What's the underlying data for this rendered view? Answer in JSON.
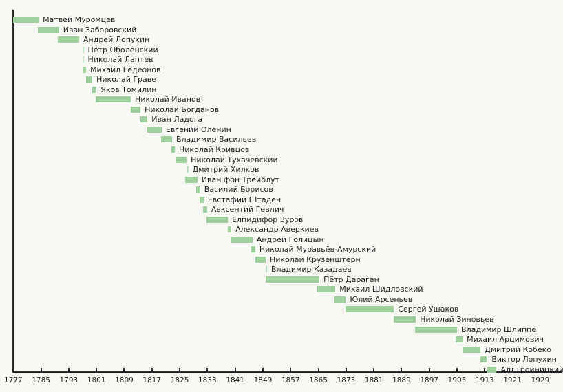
{
  "chart_data": {
    "type": "bar",
    "subtype": "horizontal-gantt-timeline",
    "title": "",
    "xlabel": "",
    "ylabel": "",
    "unit": "year",
    "grid": false,
    "legend": "none",
    "axis": {
      "min": 1777,
      "max": 1929,
      "tick_interval": 8,
      "ticks": [
        1777,
        1785,
        1793,
        1801,
        1809,
        1817,
        1825,
        1833,
        1841,
        1849,
        1857,
        1865,
        1873,
        1881,
        1889,
        1897,
        1905,
        1913,
        1921,
        1929
      ]
    },
    "people": [
      {
        "name": "Матвей Муромцев",
        "start": 1777.0,
        "end": 1784.3
      },
      {
        "name": "Иван Заборовский",
        "start": 1784.1,
        "end": 1790.2
      },
      {
        "name": "Андрей Лопухин",
        "start": 1789.9,
        "end": 1796.0
      },
      {
        "name": "Пётр Оболенский",
        "start": 1797.0,
        "end": 1797.3
      },
      {
        "name": "Николай Лаптев",
        "start": 1797.0,
        "end": 1797.3
      },
      {
        "name": "Михаил Гедеонов",
        "start": 1796.9,
        "end": 1798.0
      },
      {
        "name": "Николай Граве",
        "start": 1797.9,
        "end": 1799.8
      },
      {
        "name": "Яков Томилин",
        "start": 1799.7,
        "end": 1801.0
      },
      {
        "name": "Николай Иванов",
        "start": 1800.7,
        "end": 1810.9
      },
      {
        "name": "Николай Богданов",
        "start": 1810.8,
        "end": 1813.7
      },
      {
        "name": "Иван Ладога",
        "start": 1813.7,
        "end": 1815.7
      },
      {
        "name": "Евгений Оленин",
        "start": 1815.7,
        "end": 1819.8
      },
      {
        "name": "Владимир Васильев",
        "start": 1819.7,
        "end": 1822.8
      },
      {
        "name": "Николай Кривцов",
        "start": 1822.7,
        "end": 1823.6
      },
      {
        "name": "Николай Тухачевский",
        "start": 1824.0,
        "end": 1827.0
      },
      {
        "name": "Дмитрий Хилков",
        "start": 1827.2,
        "end": 1827.5
      },
      {
        "name": "Иван фон Трейблут",
        "start": 1826.6,
        "end": 1830.1
      },
      {
        "name": "Василий Борисов",
        "start": 1829.8,
        "end": 1830.9
      },
      {
        "name": "Евстафий Штаден",
        "start": 1830.8,
        "end": 1831.9
      },
      {
        "name": "Авксентий Гевлич",
        "start": 1831.8,
        "end": 1832.9
      },
      {
        "name": "Елпидифор Зуров",
        "start": 1832.8,
        "end": 1838.9
      },
      {
        "name": "Александр Аверкиев",
        "start": 1838.9,
        "end": 1839.9
      },
      {
        "name": "Андрей Голицын",
        "start": 1839.9,
        "end": 1846.0
      },
      {
        "name": "Николай Муравьёв-Амурский",
        "start": 1845.7,
        "end": 1846.8
      },
      {
        "name": "Николай Крузенштерн",
        "start": 1846.9,
        "end": 1849.8
      },
      {
        "name": "Владимир Казадаев",
        "start": 1849.9,
        "end": 1850.2
      },
      {
        "name": "Пётр Дараган",
        "start": 1849.9,
        "end": 1865.3
      },
      {
        "name": "Михаил Шидловский",
        "start": 1864.7,
        "end": 1869.9
      },
      {
        "name": "Юлий Арсеньев",
        "start": 1869.7,
        "end": 1872.9
      },
      {
        "name": "Сергей Ушаков",
        "start": 1872.9,
        "end": 1886.8
      },
      {
        "name": "Николай Зиновьев",
        "start": 1886.8,
        "end": 1893.1
      },
      {
        "name": "Владимир Шлиппе",
        "start": 1892.9,
        "end": 1905.0
      },
      {
        "name": "Михаил Арцимович",
        "start": 1904.6,
        "end": 1906.6
      },
      {
        "name": "Дмитрий Кобеко",
        "start": 1906.6,
        "end": 1911.8
      },
      {
        "name": "Виктор Лопухин",
        "start": 1911.8,
        "end": 1913.8
      },
      {
        "name": "Ал. Тройницкий",
        "start": 1913.8,
        "end": 1916.4
      }
    ]
  },
  "colors": {
    "bar": "#9fcf9d",
    "axis": "#2a2a2a",
    "text": "#1f1f1f",
    "background": "#f8f8f5"
  }
}
